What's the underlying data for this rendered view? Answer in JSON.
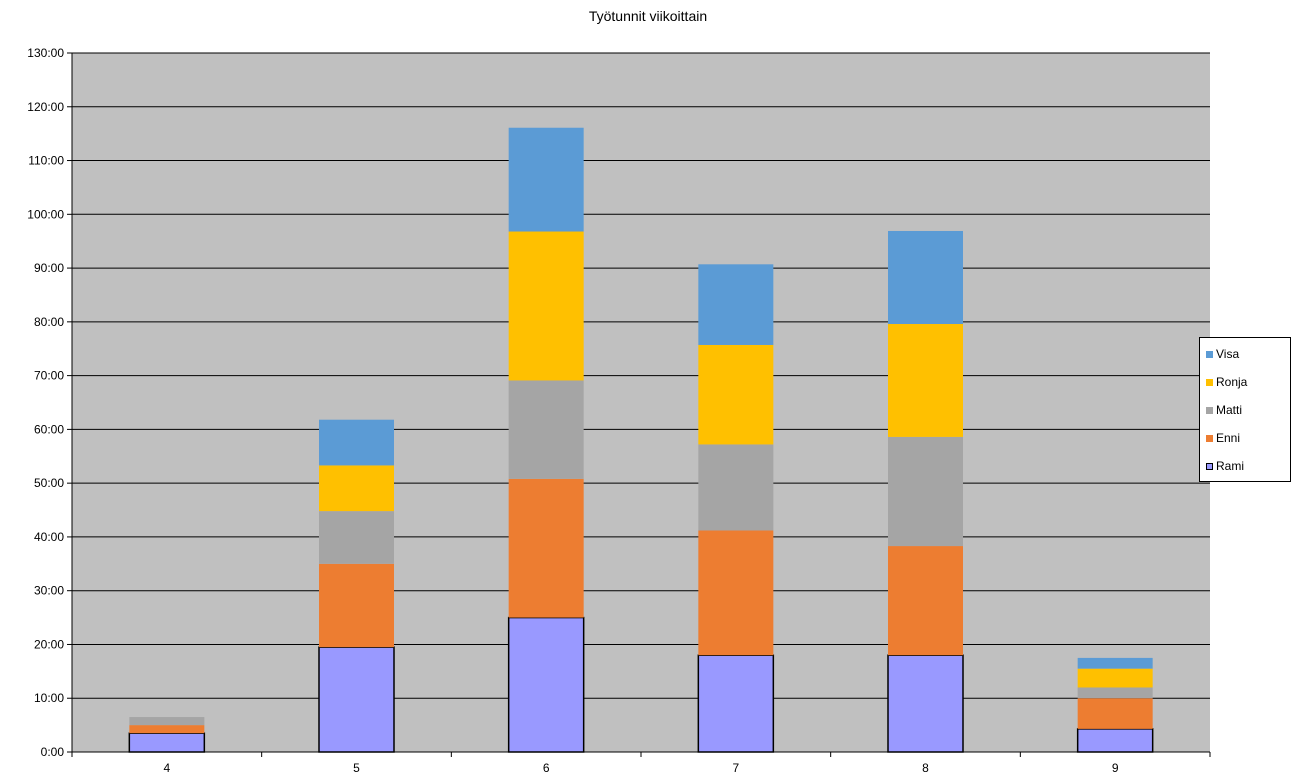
{
  "chart_data": {
    "type": "bar",
    "stacked": true,
    "title": "Työtunnit viikoittain",
    "xlabel": "",
    "ylabel": "",
    "categories": [
      "4",
      "5",
      "6",
      "7",
      "8",
      "9"
    ],
    "y_ticks": [
      "0:00",
      "10:00",
      "20:00",
      "30:00",
      "40:00",
      "50:00",
      "60:00",
      "70:00",
      "80:00",
      "90:00",
      "100:00",
      "110:00",
      "120:00",
      "130:00"
    ],
    "ylim": [
      0,
      130
    ],
    "grid": true,
    "legend_position": "right",
    "legend_order": [
      "Visa",
      "Ronja",
      "Matti",
      "Enni",
      "Rami"
    ],
    "series": [
      {
        "name": "Rami",
        "color": "#9999ff",
        "outlined": true,
        "values": [
          3.5,
          19.5,
          25.0,
          18.0,
          18.0,
          4.3
        ]
      },
      {
        "name": "Enni",
        "color": "#ed7d31",
        "outlined": false,
        "values": [
          1.5,
          15.5,
          25.8,
          23.2,
          20.3,
          5.7
        ]
      },
      {
        "name": "Matti",
        "color": "#a5a5a5",
        "outlined": false,
        "values": [
          1.5,
          9.8,
          18.3,
          16.0,
          20.3,
          2.0
        ]
      },
      {
        "name": "Ronja",
        "color": "#ffc000",
        "outlined": false,
        "values": [
          0,
          8.5,
          27.7,
          18.5,
          21.0,
          3.5
        ]
      },
      {
        "name": "Visa",
        "color": "#5b9bd5",
        "outlined": false,
        "values": [
          0,
          8.5,
          19.3,
          15.0,
          17.3,
          2.0
        ]
      }
    ]
  }
}
